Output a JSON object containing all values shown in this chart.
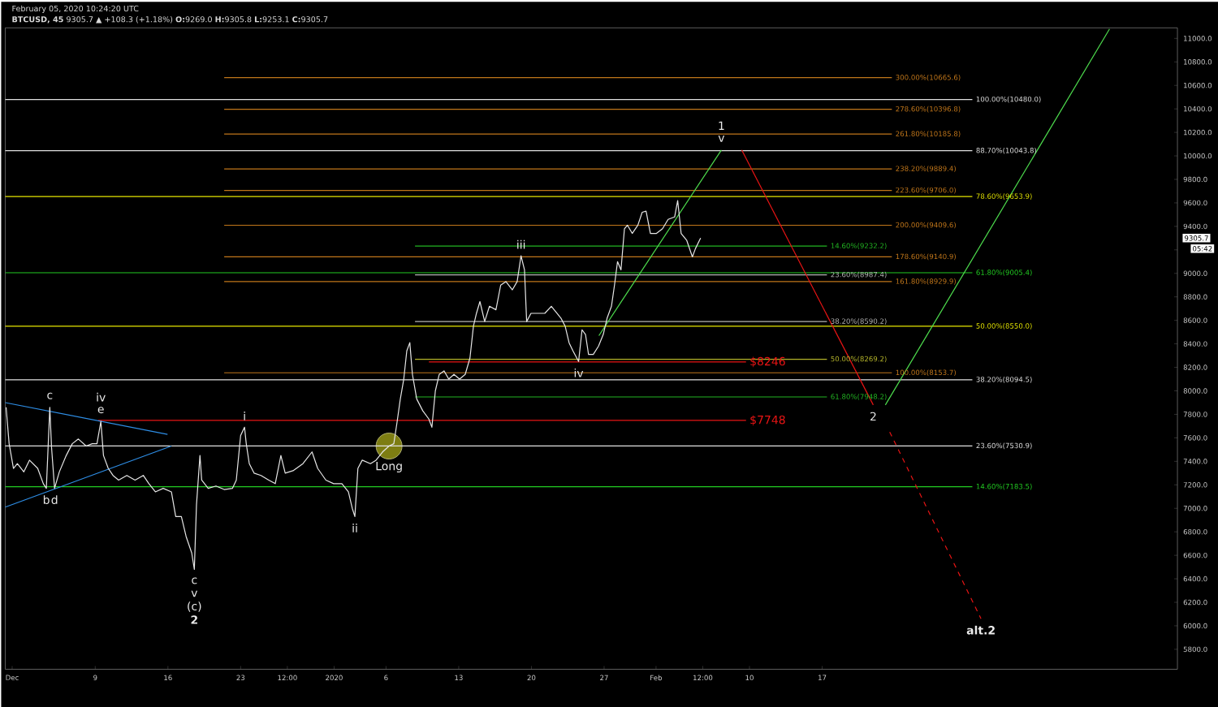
{
  "chart_data": {
    "type": "line",
    "title": "February 05, 2020 10:24:20 UTC",
    "subtitle": "**BTCUSD, 45** 9305.7 ▲ +108.3 (+1.18%) **O:**9269.0 **H:**9305.8 **L:**9253.1 **C:**9305.7",
    "xlim": [
      "2019-11-30T08:00",
      "2020-03-22T05:00"
    ],
    "ylim": [
      5630,
      11090
    ],
    "xticks": [
      {
        "value": "2019-12-01",
        "label": "Dec"
      },
      {
        "value": "2019-12-09",
        "label": "9"
      },
      {
        "value": "2019-12-16",
        "label": "16"
      },
      {
        "value": "2019-12-23",
        "label": "23"
      },
      {
        "value": "2019-12-27T12:00",
        "label": "12:00"
      },
      {
        "value": "2020-01-01",
        "label": "2020"
      },
      {
        "value": "2020-01-06",
        "label": "6"
      },
      {
        "value": "2020-01-13",
        "label": "13"
      },
      {
        "value": "2020-01-20",
        "label": "20"
      },
      {
        "value": "2020-01-27",
        "label": "27"
      },
      {
        "value": "2020-02-01",
        "label": "Feb"
      },
      {
        "value": "2020-02-05T12:00",
        "label": "12:00"
      },
      {
        "value": "2020-02-10",
        "label": "10"
      },
      {
        "value": "2020-02-17",
        "label": "17"
      }
    ],
    "yticks": [
      {
        "value": 5800,
        "label": "5800.0"
      },
      {
        "value": 6000,
        "label": "6000.0"
      },
      {
        "value": 6200,
        "label": "6200.0"
      },
      {
        "value": 6400,
        "label": "6400.0"
      },
      {
        "value": 6600,
        "label": "6600.0"
      },
      {
        "value": 6800,
        "label": "6800.0"
      },
      {
        "value": 7000,
        "label": "7000.0"
      },
      {
        "value": 7200,
        "label": "7200.0"
      },
      {
        "value": 7400,
        "label": "7400.0"
      },
      {
        "value": 7600,
        "label": "7600.0"
      },
      {
        "value": 7800,
        "label": "7800.0"
      },
      {
        "value": 8000,
        "label": "8000.0"
      },
      {
        "value": 8200,
        "label": "8200.0"
      },
      {
        "value": 8400,
        "label": "8400.0"
      },
      {
        "value": 8600,
        "label": "8600.0"
      },
      {
        "value": 8800,
        "label": "8800.0"
      },
      {
        "value": 9000,
        "label": "9000.0"
      },
      {
        "value": 9200,
        "label": null
      },
      {
        "value": 9400,
        "label": "9400.0"
      },
      {
        "value": 9600,
        "label": "9600.0"
      },
      {
        "value": 9800,
        "label": "9800.0"
      },
      {
        "value": 10000,
        "label": "10000.0"
      },
      {
        "value": 10200,
        "label": "10200.0"
      },
      {
        "value": 10400,
        "label": "10400.0"
      },
      {
        "value": 10600,
        "label": "10600.0"
      },
      {
        "value": 10800,
        "label": "10800.0"
      },
      {
        "value": 11000,
        "label": "11000.0"
      }
    ],
    "series": [
      {
        "type": "scatter",
        "marker": "circle",
        "color": "#7d7d12",
        "x": [
          "2020-01-06T07:00"
        ],
        "values": [
          7530
        ]
      },
      {
        "color": "#c0761a",
        "x": [
          "2019-12-21T10:00",
          "2020-02-23T17:00"
        ],
        "values": [
          10665.6,
          10665.6
        ]
      },
      {
        "color": "#c0761a",
        "x": [
          "2019-12-21T10:00",
          "2020-02-23T17:00"
        ],
        "values": [
          10396.8,
          10396.8
        ]
      },
      {
        "color": "#c0761a",
        "x": [
          "2019-12-21T10:00",
          "2020-02-23T17:00"
        ],
        "values": [
          10185.8,
          10185.8
        ]
      },
      {
        "color": "#c0761a",
        "x": [
          "2019-12-21T10:00",
          "2020-02-23T17:00"
        ],
        "values": [
          9889.4,
          9889.4
        ]
      },
      {
        "color": "#c0761a",
        "x": [
          "2019-12-21T10:00",
          "2020-02-23T17:00"
        ],
        "values": [
          9706.0,
          9706.0
        ]
      },
      {
        "color": "#c0761a",
        "x": [
          "2019-12-21T10:00",
          "2020-02-23T17:00"
        ],
        "values": [
          9409.6,
          9409.6
        ]
      },
      {
        "color": "#c0761a",
        "x": [
          "2019-12-21T10:00",
          "2020-02-23T17:00"
        ],
        "values": [
          9140.9,
          9140.9
        ]
      },
      {
        "color": "#c0761a",
        "x": [
          "2019-12-21T10:00",
          "2020-02-23T17:00"
        ],
        "values": [
          8929.9,
          8929.9
        ]
      },
      {
        "color": "#c0761a",
        "x": [
          "2019-12-21T10:00",
          "2020-02-23T17:00"
        ],
        "values": [
          8153.7,
          8153.7
        ]
      },
      {
        "color": "#22b422",
        "x": [
          "2020-01-08T19:00",
          "2020-02-17T11:00"
        ],
        "values": [
          9232.2,
          9232.2
        ]
      },
      {
        "color": "#b4b4b4",
        "x": [
          "2020-01-08T19:00",
          "2020-02-17T11:00"
        ],
        "values": [
          8987.4,
          8987.4
        ]
      },
      {
        "color": "#b4b4b4",
        "x": [
          "2020-01-08T19:00",
          "2020-02-17T11:00"
        ],
        "values": [
          8590.2,
          8590.2
        ]
      },
      {
        "color": "#b4b42a",
        "x": [
          "2020-01-08T19:00",
          "2020-02-17T11:00"
        ],
        "values": [
          8269.2,
          8269.2
        ]
      },
      {
        "color": "#22b422",
        "x": [
          "2020-01-08T19:00",
          "2020-02-17T11:00"
        ],
        "values": [
          7948.2,
          7948.2
        ]
      },
      {
        "color": "#e0e0e0",
        "x": [
          "2019-11-30T08:00",
          "2020-03-02T11:00"
        ],
        "values": [
          10480.0,
          10480.0
        ]
      },
      {
        "color": "#e0e0e0",
        "x": [
          "2019-11-30T08:00",
          "2020-03-02T11:00"
        ],
        "values": [
          10043.8,
          10043.8
        ]
      },
      {
        "color": "#e6e600",
        "x": [
          "2019-11-30T08:00",
          "2020-03-02T11:00"
        ],
        "values": [
          9653.9,
          9653.9
        ]
      },
      {
        "color": "#22cc22",
        "x": [
          "2019-11-30T08:00",
          "2020-03-02T11:00"
        ],
        "values": [
          9005.4,
          9005.4
        ]
      },
      {
        "color": "#e6e600",
        "x": [
          "2019-11-30T08:00",
          "2020-03-02T11:00"
        ],
        "values": [
          8550.0,
          8550.0
        ]
      },
      {
        "color": "#e0e0e0",
        "x": [
          "2019-11-30T08:00",
          "2020-03-02T11:00"
        ],
        "values": [
          8094.5,
          8094.5
        ]
      },
      {
        "color": "#e0e0e0",
        "x": [
          "2019-11-30T08:00",
          "2020-03-02T11:00"
        ],
        "values": [
          7530.9,
          7530.9
        ]
      },
      {
        "color": "#22cc22",
        "x": [
          "2019-11-30T08:00",
          "2020-03-02T11:00"
        ],
        "values": [
          7183.5,
          7183.5
        ]
      },
      {
        "color": "#e81414",
        "x": [
          "2020-01-10T03:00",
          "2020-02-09T16:00"
        ],
        "values": [
          8246,
          8246
        ]
      },
      {
        "color": "#e81414",
        "x": [
          "2019-12-09T07:00",
          "2020-02-09T16:00"
        ],
        "values": [
          7748,
          7748
        ]
      },
      {
        "color": "#2e8ee6",
        "x": [
          "2019-11-30T08:00",
          "2019-12-15T23:00"
        ],
        "values": [
          7900,
          7630
        ]
      },
      {
        "color": "#2e8ee6",
        "x": [
          "2019-11-30T08:00",
          "2019-12-16T08:00"
        ],
        "values": [
          7010,
          7530
        ]
      },
      {
        "color": "#4ddc4d",
        "x": [
          "2020-01-26T12:00",
          "2020-02-07T07:00"
        ],
        "values": [
          8470,
          10050
        ]
      },
      {
        "color": "#e81414",
        "x": [
          "2020-02-09T06:00",
          "2020-02-21T22:00"
        ],
        "values": [
          10050,
          7880
        ]
      },
      {
        "color": "#4ddc4d",
        "x": [
          "2020-02-23T02:00",
          "2020-03-15T16:00"
        ],
        "values": [
          7880,
          11080
        ]
      },
      {
        "color": "#e81414",
        "line_style": "dashed",
        "x": [
          "2020-02-23T12:00",
          "2020-03-03T07:00"
        ],
        "values": [
          7650,
          6060
        ]
      },
      {
        "color": "#e6e6e6",
        "x": [
          "2019-11-30T10:00",
          "2019-11-30T17:00",
          "2019-12-01T03:00",
          "2019-12-01T12:00",
          "2019-12-02T03:00",
          "2019-12-02T16:00",
          "2019-12-03T11:00",
          "2019-12-04T00:00",
          "2019-12-04T07:00",
          "2019-12-04T15:00",
          "2019-12-04T19:00",
          "2019-12-05T02:00",
          "2019-12-05T13:00",
          "2019-12-06T05:00",
          "2019-12-06T19:00",
          "2019-12-07T09:00",
          "2019-12-08T03:00",
          "2019-12-08T17:00",
          "2019-12-09T04:00",
          "2019-12-09T13:00",
          "2019-12-09T19:00",
          "2019-12-10T06:00",
          "2019-12-10T17:00",
          "2019-12-11T06:00",
          "2019-12-12T01:00",
          "2019-12-12T20:00",
          "2019-12-13T15:00",
          "2019-12-14T04:00",
          "2019-12-14T19:00",
          "2019-12-15T13:00",
          "2019-12-16T08:00",
          "2019-12-16T18:00",
          "2019-12-17T07:00",
          "2019-12-17T18:00",
          "2019-12-18T07:00",
          "2019-12-18T13:00",
          "2019-12-18T18:00",
          "2019-12-19T02:00",
          "2019-12-19T06:00",
          "2019-12-19T21:00",
          "2019-12-20T15:00",
          "2019-12-21T10:00",
          "2019-12-22T05:00",
          "2019-12-22T14:00",
          "2019-12-23T00:00",
          "2019-12-23T09:00",
          "2019-12-23T13:00",
          "2019-12-23T20:00",
          "2019-12-24T07:00",
          "2019-12-24T23:00",
          "2019-12-25T17:00",
          "2019-12-26T08:00",
          "2019-12-26T21:00",
          "2019-12-27T07:00",
          "2019-12-28T01:00",
          "2019-12-29T00:00",
          "2019-12-29T21:00",
          "2019-12-30T10:00",
          "2019-12-31T05:00",
          "2019-12-31T23:00",
          "2020-01-01T18:00",
          "2020-01-02T09:00",
          "2020-01-02T18:00",
          "2020-01-03T00:00",
          "2020-01-03T07:00",
          "2020-01-03T17:00",
          "2020-01-04T12:00",
          "2020-01-05T01:00",
          "2020-01-05T16:00",
          "2020-01-06T07:00",
          "2020-01-06T18:00",
          "2020-01-07T01:00",
          "2020-01-07T09:00",
          "2020-01-07T17:00",
          "2020-01-08T00:00",
          "2020-01-08T07:00",
          "2020-01-08T13:00",
          "2020-01-08T23:00",
          "2020-01-09T13:00",
          "2020-01-10T03:00",
          "2020-01-10T10:00",
          "2020-01-10T18:00",
          "2020-01-11T03:00",
          "2020-01-11T14:00",
          "2020-01-12T01:00",
          "2020-01-12T13:00",
          "2020-01-13T02:00",
          "2020-01-13T15:00",
          "2020-01-14T02:00",
          "2020-01-14T10:00",
          "2020-01-14T17:00",
          "2020-01-15T01:00",
          "2020-01-15T12:00",
          "2020-01-15T23:00",
          "2020-01-16T14:00",
          "2020-01-17T01:00",
          "2020-01-17T13:00",
          "2020-01-18T04:00",
          "2020-01-18T15:00",
          "2020-01-19T00:00",
          "2020-01-19T08:00",
          "2020-01-19T13:00",
          "2020-01-19T23:00",
          "2020-01-20T12:00",
          "2020-01-21T07:00",
          "2020-01-21T22:00",
          "2020-01-22T11:00",
          "2020-01-22T20:00",
          "2020-01-23T06:00",
          "2020-01-23T15:00",
          "2020-01-24T00:00",
          "2020-01-24T13:00",
          "2020-01-24T21:00",
          "2020-01-25T05:00",
          "2020-01-25T12:00",
          "2020-01-25T23:00",
          "2020-01-26T11:00",
          "2020-01-26T22:00",
          "2020-01-27T07:00",
          "2020-01-27T17:00",
          "2020-01-28T00:00",
          "2020-01-28T07:00",
          "2020-01-28T15:00",
          "2020-01-28T23:00",
          "2020-01-29T06:00",
          "2020-01-29T17:00",
          "2020-01-30T06:00",
          "2020-01-30T16:00",
          "2020-01-31T01:00",
          "2020-01-31T11:00",
          "2020-02-01T01:00",
          "2020-02-01T15:00",
          "2020-02-02T04:00",
          "2020-02-02T19:00",
          "2020-02-03T02:00",
          "2020-02-03T10:00",
          "2020-02-03T23:00",
          "2020-02-04T12:00",
          "2020-02-04T19:00",
          "2020-02-05T07:00"
        ],
        "values": [
          7860,
          7550,
          7340,
          7380,
          7310,
          7410,
          7340,
          7210,
          7170,
          7860,
          7520,
          7170,
          7310,
          7450,
          7550,
          7590,
          7530,
          7550,
          7550,
          7740,
          7450,
          7340,
          7280,
          7240,
          7280,
          7240,
          7280,
          7210,
          7140,
          7170,
          7140,
          6930,
          6930,
          6760,
          6620,
          6480,
          7030,
          7450,
          7240,
          7170,
          7190,
          7160,
          7170,
          7240,
          7620,
          7690,
          7550,
          7380,
          7300,
          7280,
          7240,
          7210,
          7450,
          7300,
          7320,
          7380,
          7480,
          7340,
          7240,
          7210,
          7210,
          7140,
          7000,
          6930,
          7340,
          7410,
          7380,
          7410,
          7480,
          7530,
          7550,
          7720,
          7930,
          8100,
          8340,
          8410,
          8140,
          7930,
          7830,
          7760,
          7690,
          8000,
          8140,
          8170,
          8100,
          8140,
          8100,
          8140,
          8280,
          8550,
          8660,
          8760,
          8590,
          8720,
          8690,
          8900,
          8930,
          8860,
          8930,
          9150,
          9030,
          8590,
          8660,
          8660,
          8660,
          8720,
          8660,
          8620,
          8550,
          8410,
          8340,
          8250,
          8520,
          8480,
          8310,
          8310,
          8380,
          8480,
          8620,
          8720,
          8900,
          9100,
          9030,
          9380,
          9410,
          9340,
          9410,
          9520,
          9530,
          9340,
          9340,
          9380,
          9460,
          9480,
          9620,
          9340,
          9280,
          9140,
          9210,
          9300
        ]
      }
    ],
    "annotations": [
      "9305.7",
      "05:42",
      {
        "text": "300.00%(10665.6)",
        "x": "2020-02-23T17:00",
        "y": 10665.6
      },
      {
        "text": "278.60%(10396.8)",
        "x": "2020-02-23T17:00",
        "y": 10396.8
      },
      {
        "text": "261.80%(10185.8)",
        "x": "2020-02-23T17:00",
        "y": 10185.8
      },
      {
        "text": "238.20%(9889.4)",
        "x": "2020-02-23T17:00",
        "y": 9889.4
      },
      {
        "text": "223.60%(9706.0)",
        "x": "2020-02-23T17:00",
        "y": 9706.0
      },
      {
        "text": "200.00%(9409.6)",
        "x": "2020-02-23T17:00",
        "y": 9409.6
      },
      {
        "text": "178.60%(9140.9)",
        "x": "2020-02-23T17:00",
        "y": 9140.9
      },
      {
        "text": "161.80%(8929.9)",
        "x": "2020-02-23T17:00",
        "y": 8929.9
      },
      {
        "text": "100.00%(8153.7)",
        "x": "2020-02-23T17:00",
        "y": 8153.7
      },
      {
        "text": "14.60%(9232.2)",
        "x": "2020-02-17T11:00",
        "y": 9232.2
      },
      {
        "text": "23.60%(8987.4)",
        "x": "2020-02-17T11:00",
        "y": 8987.4
      },
      {
        "text": "38.20%(8590.2)",
        "x": "2020-02-17T11:00",
        "y": 8590.2
      },
      {
        "text": "50.00%(8269.2)",
        "x": "2020-02-17T11:00",
        "y": 8269.2
      },
      {
        "text": "61.80%(7948.2)",
        "x": "2020-02-17T11:00",
        "y": 7948.2
      },
      {
        "text": "100.00%(10480.0)",
        "x": "2020-03-02T11:00",
        "y": 10480.0
      },
      {
        "text": "88.70%(10043.8)",
        "x": "2020-03-02T11:00",
        "y": 10043.8
      },
      {
        "text": "78.60%(9653.9)",
        "x": "2020-03-02T11:00",
        "y": 9653.9
      },
      {
        "text": "61.80%(9005.4)",
        "x": "2020-03-02T11:00",
        "y": 9005.4
      },
      {
        "text": "50.00%(8550.0)",
        "x": "2020-03-02T11:00",
        "y": 8550.0
      },
      {
        "text": "38.20%(8094.5)",
        "x": "2020-03-02T11:00",
        "y": 8094.5
      },
      {
        "text": "23.60%(7530.9)",
        "x": "2020-03-02T11:00",
        "y": 7530.9
      },
      {
        "text": "14.60%(7183.5)",
        "x": "2020-03-02T11:00",
        "y": 7183.5
      },
      {
        "text": "$8246",
        "x": "2020-02-09T16:00",
        "y": 8246
      },
      {
        "text": "$7748",
        "x": "2020-02-09T16:00",
        "y": 7748
      },
      {
        "text": "c",
        "x": "2019-12-04T15:00",
        "y": 7860
      },
      {
        "text": "e",
        "x": "2019-12-09T13:00",
        "y": 7740
      },
      {
        "text": "iv",
        "x": "2019-12-09T13:00",
        "y": 7740
      },
      {
        "text": "b",
        "x": "2019-12-04T07:00",
        "y": 7170
      },
      {
        "text": "d",
        "x": "2019-12-05T02:00",
        "y": 7170
      },
      {
        "text": "i",
        "x": "2019-12-23T09:00",
        "y": 7690
      },
      {
        "text": "ii",
        "x": "2020-01-03T00:00",
        "y": 6930
      },
      {
        "text": "iii",
        "x": "2020-01-19T00:00",
        "y": 9150
      },
      {
        "text": "iv",
        "x": "2020-01-24T13:00",
        "y": 8250
      },
      {
        "text": "v",
        "x": "2020-02-07T07:00",
        "y": 10050
      },
      {
        "text": "1",
        "x": "2020-02-07T07:00",
        "y": 10050
      },
      {
        "text": "2",
        "x": "2020-02-21T22:00",
        "y": 7880
      },
      {
        "text": "c",
        "x": "2019-12-18T13:00",
        "y": 6480
      },
      {
        "text": "v",
        "x": "2019-12-18T13:00",
        "y": 6480
      },
      {
        "text": "(c)",
        "x": "2019-12-18T13:00",
        "y": 6480
      },
      "**2**",
      {
        "text": "**alt.2**",
        "x": "2020-03-03T07:00",
        "y": 6060
      },
      {
        "text": "Long",
        "x": "2020-01-06T07:00",
        "y": 7530
      }
    ]
  }
}
